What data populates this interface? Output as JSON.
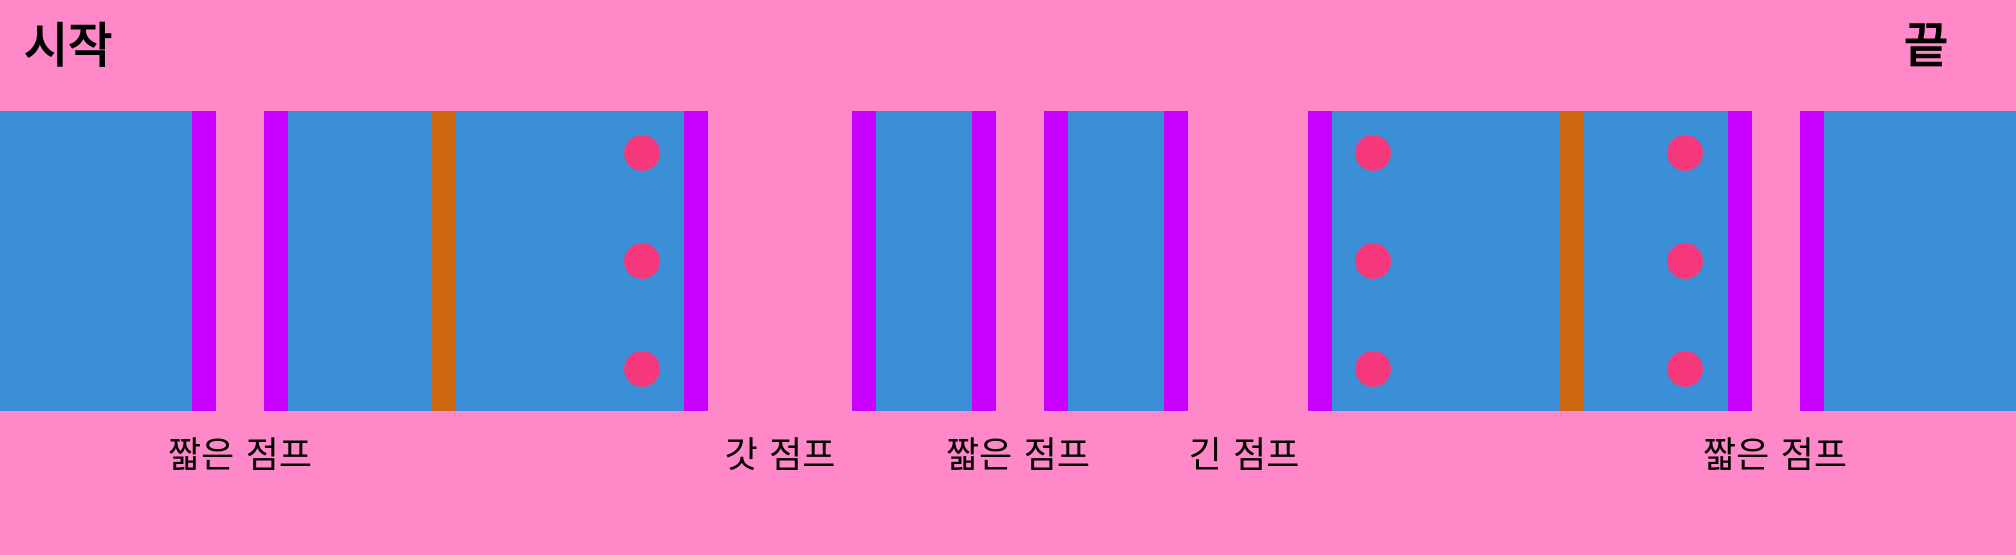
{
  "title": {
    "start": "시작",
    "end": "끝"
  },
  "jumps": [
    {
      "label": "짧은 점프"
    },
    {
      "label": "갓 점프"
    },
    {
      "label": "짧은 점프"
    },
    {
      "label": "긴 점프"
    },
    {
      "label": "짧은 점프"
    }
  ],
  "colors": {
    "background": "#ff88c8",
    "platform": "#3a8fd6",
    "wall": "#c800ff",
    "pillar": "#cc6610",
    "coin": "#f5387c"
  }
}
